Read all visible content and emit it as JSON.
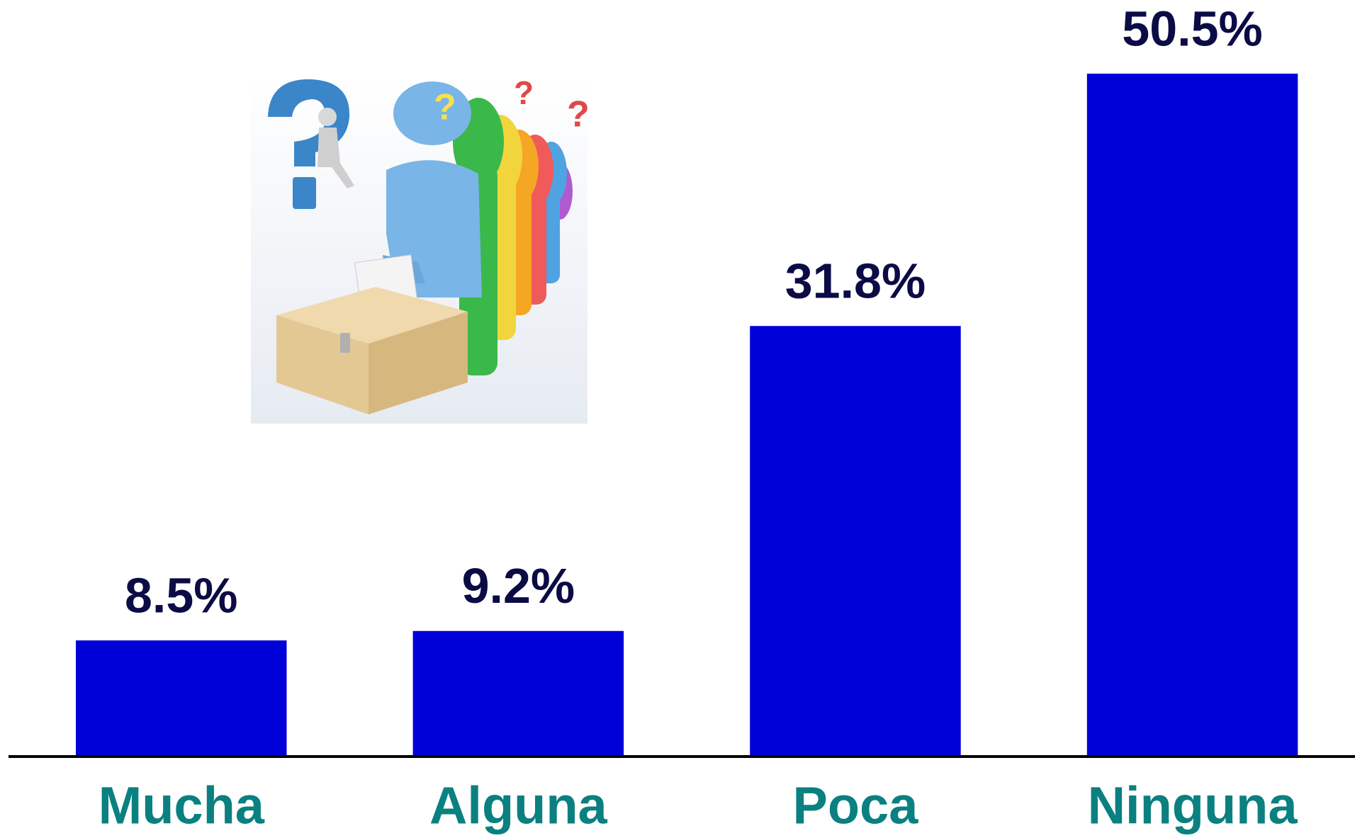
{
  "chart_data": {
    "type": "bar",
    "categories": [
      "Mucha",
      "Alguna",
      "Poca",
      "Ninguna"
    ],
    "values": [
      8.5,
      9.2,
      31.8,
      50.5
    ],
    "value_labels": [
      "8.5%",
      "9.2%",
      "31.8%",
      "50.5%"
    ],
    "color": "#0000d8"
  }
}
